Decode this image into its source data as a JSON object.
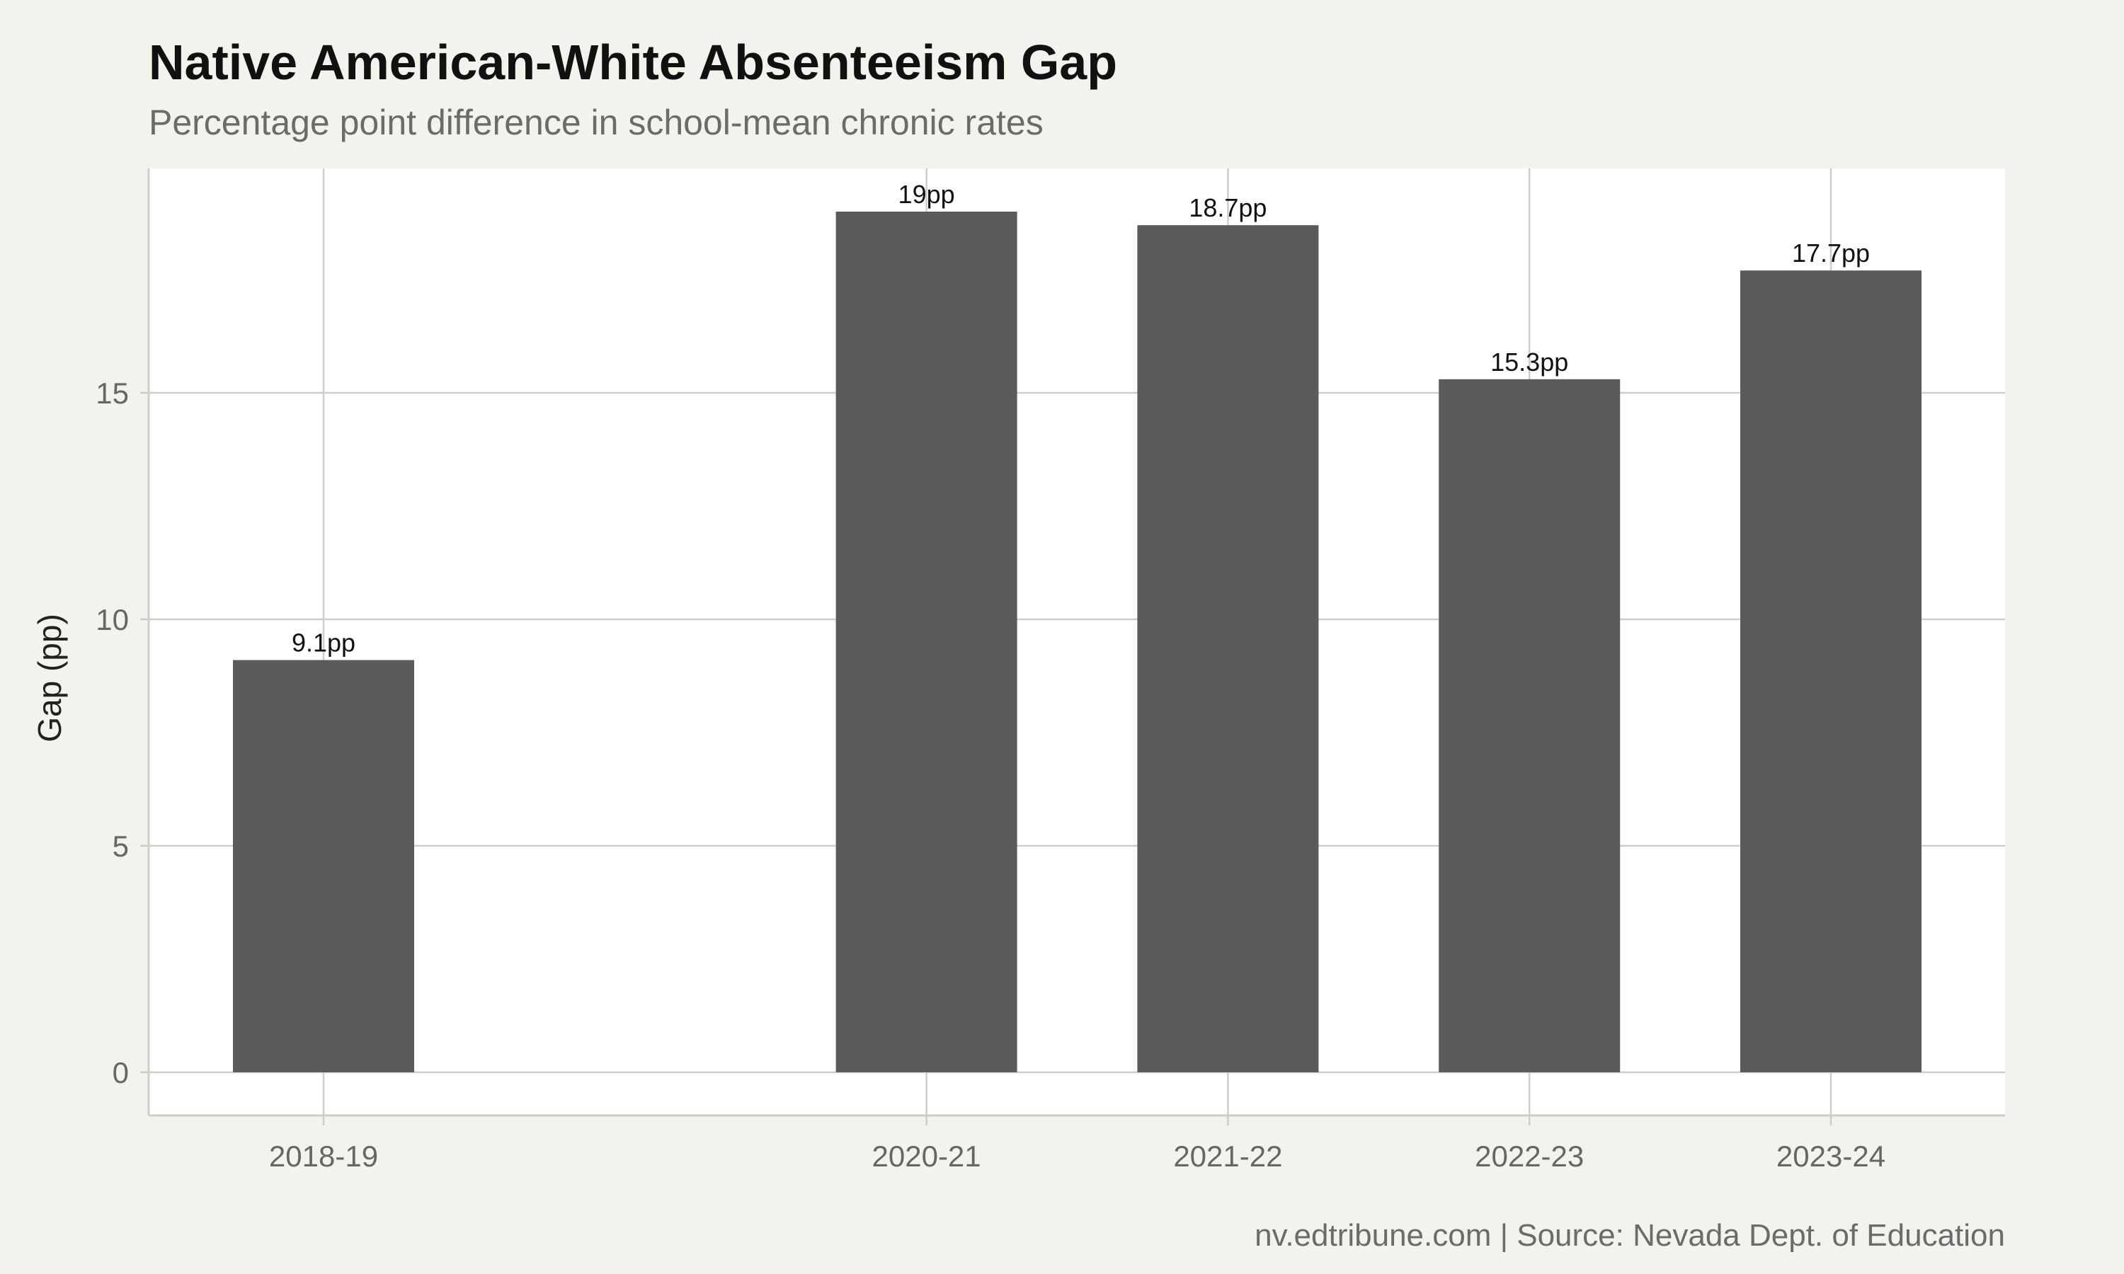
{
  "chart_data": {
    "type": "bar",
    "title": "Native American-White Absenteeism Gap",
    "subtitle": "Percentage point difference in school-mean chronic rates",
    "xlabel": "",
    "ylabel": "Gap (pp)",
    "caption": "nv.edtribune.com | Source: Nevada Dept. of Education",
    "categories": [
      "2018-19",
      "2020-21",
      "2021-22",
      "2022-23",
      "2023-24"
    ],
    "x_year_start": [
      2018,
      2020,
      2021,
      2022,
      2023
    ],
    "values": [
      9.1,
      19,
      18.7,
      15.3,
      17.7
    ],
    "data_labels": [
      "9.1pp",
      "19pp",
      "18.7pp",
      "15.3pp",
      "17.7pp"
    ],
    "ylim": [
      0,
      20
    ],
    "y_ticks": [
      0,
      5,
      10,
      15
    ],
    "grid": true,
    "legend": "none",
    "colors": {
      "bar": "#5a5a5a",
      "panel": "#ffffff",
      "background": "#f4f2ed",
      "grid": "#cfcdc6"
    }
  }
}
